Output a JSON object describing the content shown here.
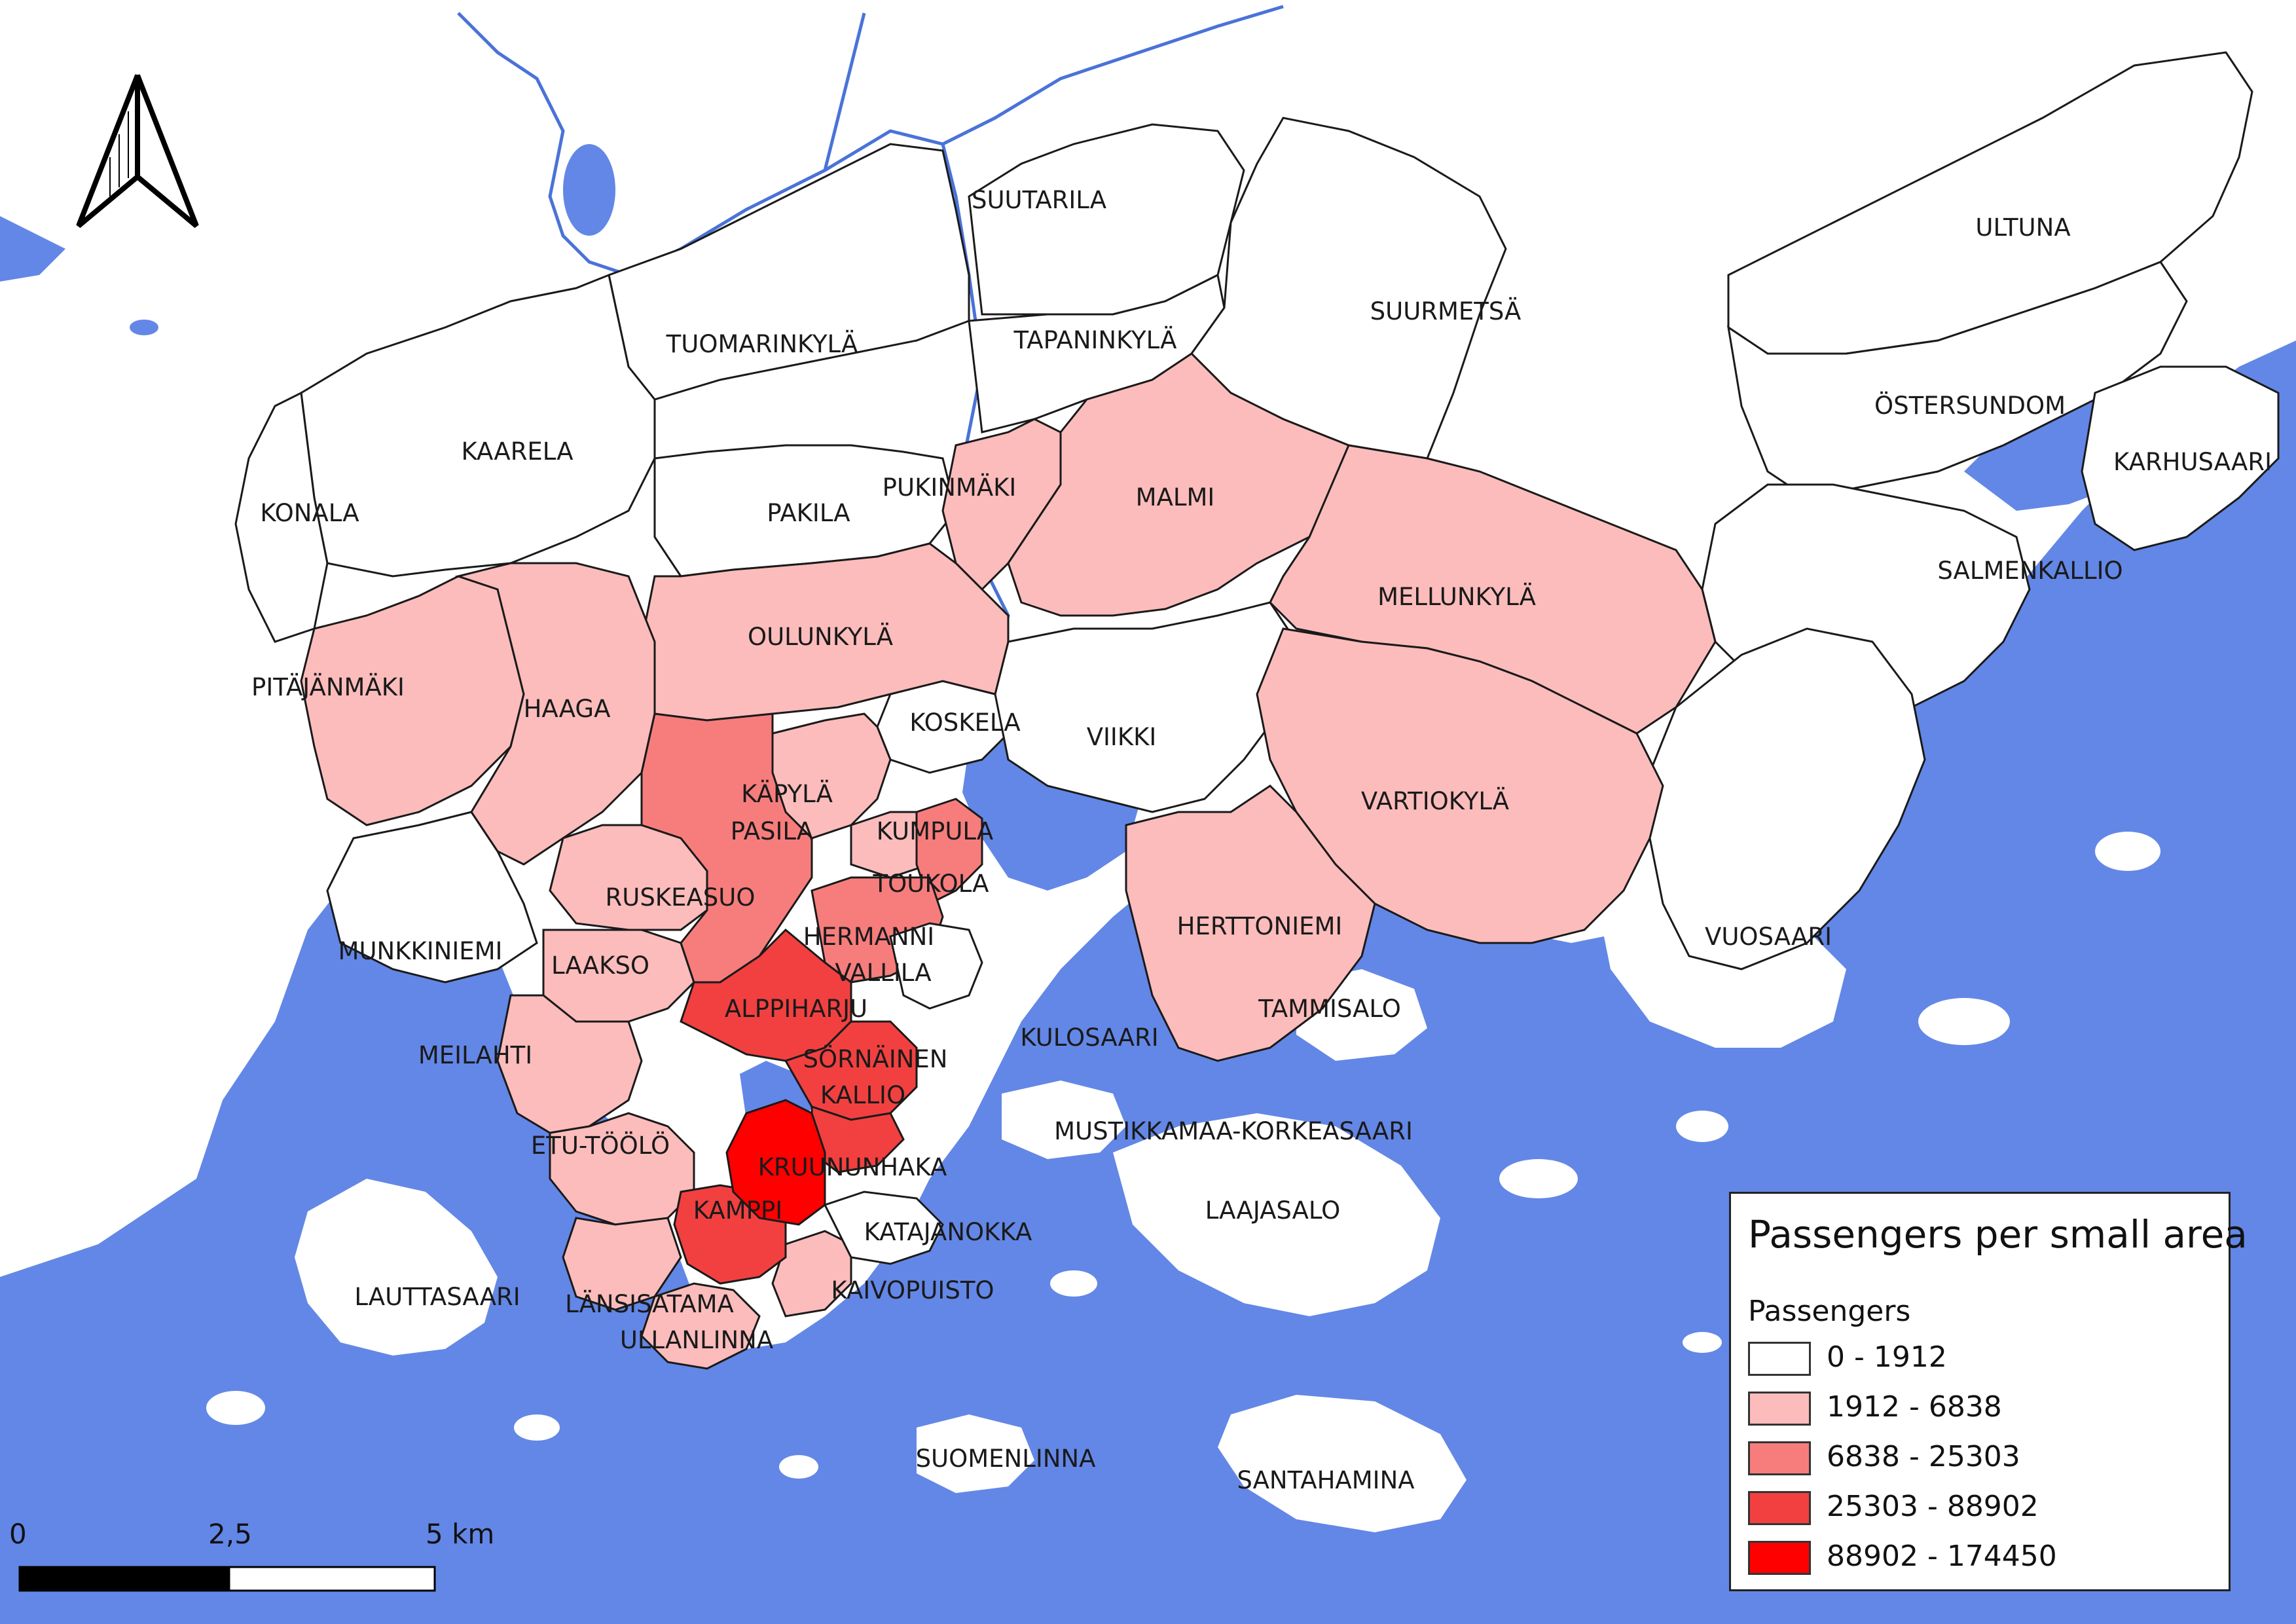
{
  "title": "Passengers per small area",
  "legend": {
    "subtitle": "Passengers",
    "classes": [
      {
        "range": "0 - 1912",
        "color": "#ffffff"
      },
      {
        "range": "1912 - 6838",
        "color": "#fcbcbc"
      },
      {
        "range": "6838 - 25303",
        "color": "#f77d7d"
      },
      {
        "range": "25303 - 88902",
        "color": "#f24040"
      },
      {
        "range": "88902 - 174450",
        "color": "#ff0000"
      }
    ]
  },
  "colors": {
    "water": "#6387e6",
    "land": "#ffffff",
    "border": "#1a1a1a",
    "river": "#4a73d8"
  },
  "scale_bar": {
    "labels": [
      "0",
      "2,5",
      "5 km"
    ]
  },
  "north_arrow": {
    "icon": "north-arrow-icon"
  },
  "regions": [
    {
      "name": "SUUTARILA",
      "class": 0
    },
    {
      "name": "ULTUNA",
      "class": 0
    },
    {
      "name": "TUOMARINKYLÄ",
      "class": 0
    },
    {
      "name": "TAPANINKYLÄ",
      "class": 0
    },
    {
      "name": "SUURMETSÄ",
      "class": 0
    },
    {
      "name": "KAARELA",
      "class": 0
    },
    {
      "name": "ÖSTERSUNDOM",
      "class": 0
    },
    {
      "name": "KARHUSAARI",
      "class": 0
    },
    {
      "name": "PUKINMÄKI",
      "class": 1
    },
    {
      "name": "MALMI",
      "class": 1
    },
    {
      "name": "KONALA",
      "class": 0
    },
    {
      "name": "PAKILA",
      "class": 0
    },
    {
      "name": "SALMENKALLIO",
      "class": 0
    },
    {
      "name": "MELLUNKYLÄ",
      "class": 1
    },
    {
      "name": "OULUNKYLÄ",
      "class": 1
    },
    {
      "name": "PITÄJÄNMÄKI",
      "class": 1
    },
    {
      "name": "HAAGA",
      "class": 1
    },
    {
      "name": "KOSKELA",
      "class": 0
    },
    {
      "name": "VIIKKI",
      "class": 0
    },
    {
      "name": "KÄPYLÄ",
      "class": 1
    },
    {
      "name": "VARTIOKYLÄ",
      "class": 1
    },
    {
      "name": "PASILA",
      "class": 2
    },
    {
      "name": "KUMPULA",
      "class": 1
    },
    {
      "name": "TOUKOLA",
      "class": 2
    },
    {
      "name": "RUSKEASUO",
      "class": 1
    },
    {
      "name": "HERTTONIEMI",
      "class": 1
    },
    {
      "name": "HERMANNI",
      "class": 2
    },
    {
      "name": "VUOSAARI",
      "class": 0
    },
    {
      "name": "MUNKKINIEMI",
      "class": 0
    },
    {
      "name": "LAAKSO",
      "class": 1
    },
    {
      "name": "VALLILA",
      "class": 0
    },
    {
      "name": "TAMMISALO",
      "class": 0
    },
    {
      "name": "ALPPIHARJU",
      "class": 3
    },
    {
      "name": "MEILAHTI",
      "class": 1
    },
    {
      "name": "KULOSAARI",
      "class": 0
    },
    {
      "name": "SÖRNÄINEN",
      "class": 3
    },
    {
      "name": "KALLIO",
      "class": 3
    },
    {
      "name": "MUSTIKKAMAA-KORKEASAARI",
      "class": 0
    },
    {
      "name": "ETU-TÖÖLÖ",
      "class": 1
    },
    {
      "name": "KRUUNUNHAKA",
      "class": 4
    },
    {
      "name": "LAAJASALO",
      "class": 0
    },
    {
      "name": "KAMPPI",
      "class": 3
    },
    {
      "name": "KATAJANOKKA",
      "class": 0
    },
    {
      "name": "LAUTTASAARI",
      "class": 0
    },
    {
      "name": "KAIVOPUISTO",
      "class": 1
    },
    {
      "name": "LÄNSISATAMA",
      "class": 1
    },
    {
      "name": "ULLANLINNA",
      "class": 1
    },
    {
      "name": "SUOMENLINNA",
      "class": 0
    },
    {
      "name": "SANTAHAMINA",
      "class": 0
    }
  ]
}
